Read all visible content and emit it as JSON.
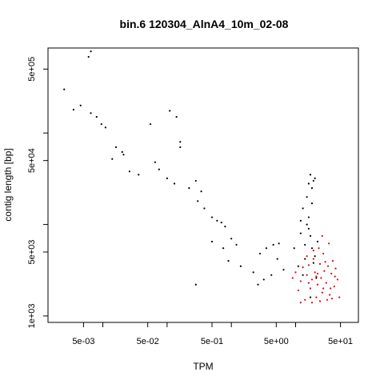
{
  "chart_data": {
    "type": "scatter",
    "title": "bin.6 120304_AlnA4_10m_02-08",
    "xlabel": "TPM",
    "ylabel": "contig length [bp]",
    "x_scale": "log10",
    "y_scale": "log10",
    "xlim": [
      0.0014,
      95
    ],
    "ylim": [
      850,
      850000
    ],
    "x_ticks": [
      {
        "value": 0.005,
        "label": "5e-03"
      },
      {
        "value": 0.05,
        "label": "5e-02"
      },
      {
        "value": 0.5,
        "label": "5e-01"
      },
      {
        "value": 5,
        "label": "5e+00"
      },
      {
        "value": 50,
        "label": "5e+01"
      }
    ],
    "x_minor_ticks": [
      0.01,
      0.1,
      1,
      10
    ],
    "y_ticks": [
      {
        "value": 1000,
        "label": "1e+03"
      },
      {
        "value": 5000,
        "label": "5e+03"
      },
      {
        "value": 50000,
        "label": "5e+04"
      },
      {
        "value": 500000,
        "label": "5e+05"
      }
    ],
    "y_minor_ticks": [
      10000,
      100000
    ],
    "grid": false,
    "legend": "none",
    "series": [
      {
        "color": "#000000",
        "points": [
          [
            0.0025,
            300000
          ],
          [
            0.0035,
            180000
          ],
          [
            0.0045,
            200000
          ],
          [
            0.006,
            680000
          ],
          [
            0.0065,
            780000
          ],
          [
            0.0065,
            165000
          ],
          [
            0.008,
            150000
          ],
          [
            0.0095,
            125000
          ],
          [
            0.011,
            115000
          ],
          [
            0.016,
            70000
          ],
          [
            0.02,
            62000
          ],
          [
            0.021,
            58000
          ],
          [
            0.014,
            52000
          ],
          [
            0.026,
            38000
          ],
          [
            0.036,
            35000
          ],
          [
            0.065,
            48000
          ],
          [
            0.055,
            125000
          ],
          [
            0.075,
            40000
          ],
          [
            0.11,
            175000
          ],
          [
            0.14,
            150000
          ],
          [
            0.16,
            80000
          ],
          [
            0.16,
            70000
          ],
          [
            0.1,
            32000
          ],
          [
            0.13,
            28000
          ],
          [
            0.22,
            25000
          ],
          [
            0.28,
            30000
          ],
          [
            0.34,
            23000
          ],
          [
            0.3,
            18000
          ],
          [
            0.38,
            15000
          ],
          [
            0.5,
            12000
          ],
          [
            0.6,
            11000
          ],
          [
            0.7,
            10500
          ],
          [
            0.8,
            9500
          ],
          [
            1.0,
            7000
          ],
          [
            1.2,
            6000
          ],
          [
            0.75,
            5500
          ],
          [
            0.5,
            6500
          ],
          [
            0.28,
            2200
          ],
          [
            0.9,
            4000
          ],
          [
            1.4,
            3500
          ],
          [
            2.2,
            3000
          ],
          [
            3.5,
            5500
          ],
          [
            2.8,
            4800
          ],
          [
            4.5,
            6000
          ],
          [
            5.5,
            6200
          ],
          [
            3.2,
            2500
          ],
          [
            2.6,
            2200
          ],
          [
            4.2,
            2800
          ],
          [
            5.2,
            4200
          ],
          [
            6.5,
            3200
          ],
          [
            9.5,
            5500
          ],
          [
            12,
            8000
          ],
          [
            14,
            6000
          ],
          [
            15,
            20000
          ],
          [
            16,
            28000
          ],
          [
            17,
            35000
          ],
          [
            19,
            30000
          ],
          [
            18,
            17000
          ],
          [
            16,
            12000
          ],
          [
            12,
            11000
          ],
          [
            15,
            10000
          ],
          [
            17,
            7500
          ],
          [
            18,
            5500
          ],
          [
            20,
            4500
          ],
          [
            14,
            4200
          ],
          [
            11,
            3500
          ],
          [
            19,
            3800
          ],
          [
            13,
            2800
          ],
          [
            21,
            2600
          ],
          [
            17,
            1600
          ],
          [
            22,
            6500
          ],
          [
            18,
            25000
          ],
          [
            20,
            32000
          ],
          [
            13,
            15000
          ],
          [
            16,
            9000
          ]
        ]
      },
      {
        "color": "#e8000b",
        "points": [
          [
            9,
            2600
          ],
          [
            10,
            3000
          ],
          [
            11,
            1900
          ],
          [
            12,
            2400
          ],
          [
            13,
            3400
          ],
          [
            14,
            1500
          ],
          [
            15,
            2800
          ],
          [
            16,
            3600
          ],
          [
            17,
            2000
          ],
          [
            18,
            2500
          ],
          [
            19,
            4200
          ],
          [
            20,
            3000
          ],
          [
            21,
            1600
          ],
          [
            22,
            2200
          ],
          [
            23,
            5500
          ],
          [
            24,
            3700
          ],
          [
            25,
            2600
          ],
          [
            26,
            1800
          ],
          [
            27,
            4800
          ],
          [
            28,
            3100
          ],
          [
            30,
            2300
          ],
          [
            32,
            3500
          ],
          [
            34,
            1700
          ],
          [
            36,
            2900
          ],
          [
            38,
            4000
          ],
          [
            40,
            2100
          ],
          [
            42,
            3300
          ],
          [
            45,
            2500
          ],
          [
            48,
            1600
          ],
          [
            26,
            7500
          ],
          [
            33,
            6200
          ],
          [
            19,
            5200
          ],
          [
            15,
            4500
          ],
          [
            22,
            2900
          ],
          [
            29,
            3900
          ],
          [
            35,
            2000
          ],
          [
            41,
            2700
          ],
          [
            12,
            1400
          ],
          [
            18,
            1400
          ],
          [
            24,
            1450
          ],
          [
            31,
            1500
          ],
          [
            37,
            1550
          ],
          [
            27,
            2000
          ],
          [
            21,
            2700
          ],
          [
            16,
            2300
          ]
        ]
      }
    ]
  }
}
